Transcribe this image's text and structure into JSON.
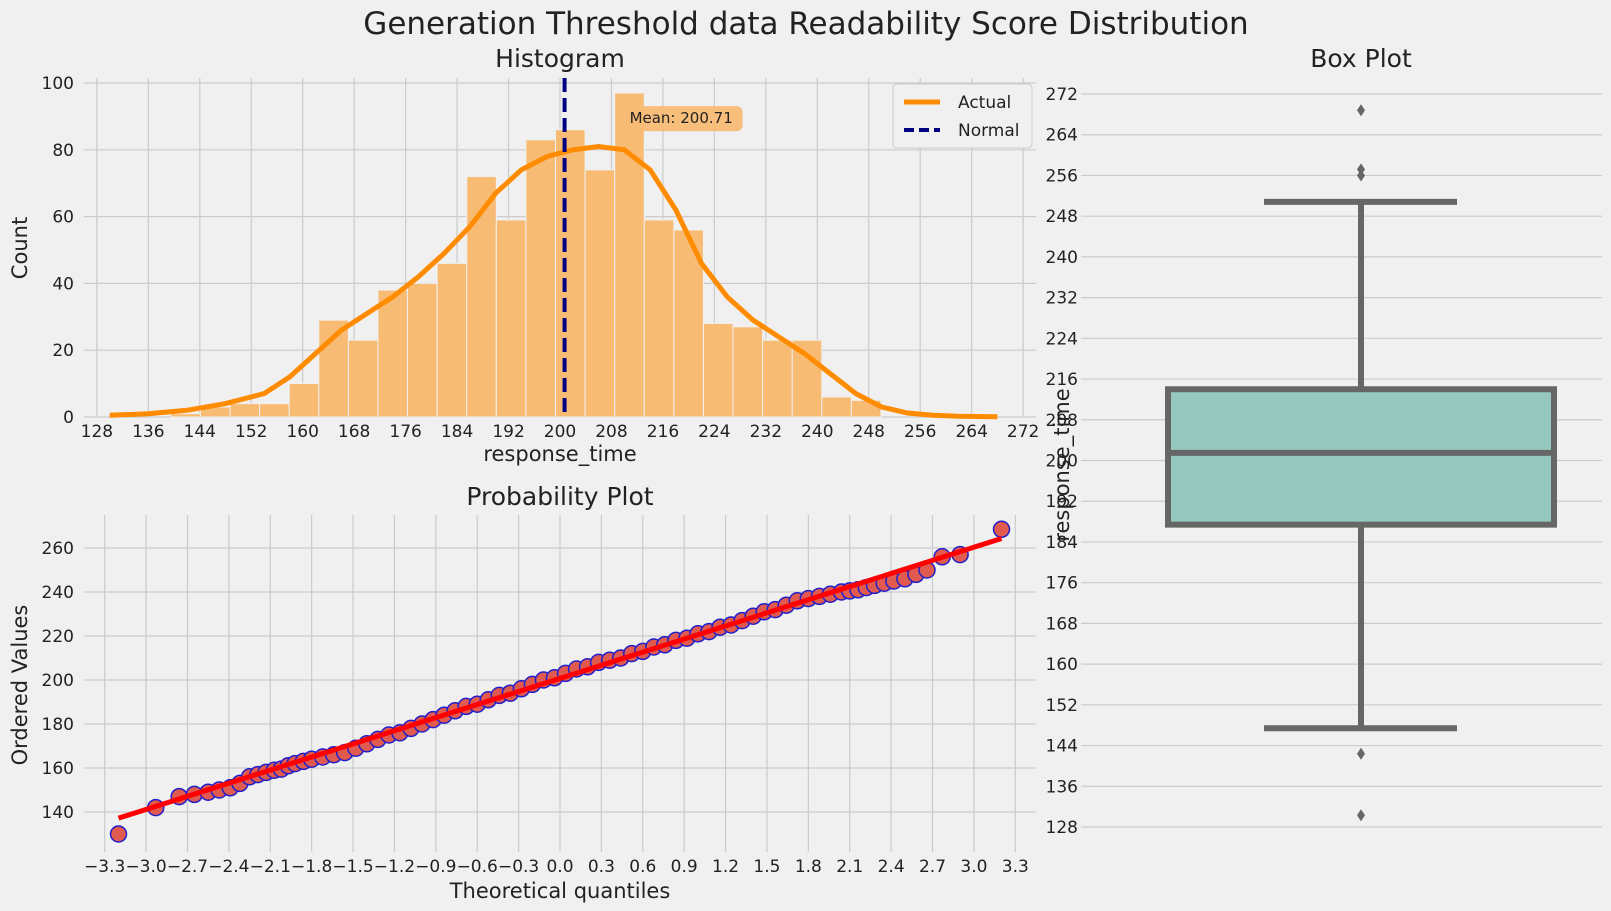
{
  "figure_title": "Generation Threshold data Readability Score Distribution",
  "colors": {
    "background": "#f0f0f0",
    "grid": "#cbcbcb",
    "hist_bar": "#f8bb74",
    "kde": "#ff8c00",
    "mean_line": "#000080",
    "qq_point_fill": "#e05a4f",
    "qq_point_edge": "#1f1fcc",
    "qq_line": "#ff0000",
    "box_fill": "#96c8c0",
    "box_edge": "#666666"
  },
  "chart_data": [
    {
      "type": "bar",
      "id": "histogram",
      "title": "Histogram",
      "xlabel": "response_time",
      "ylabel": "Count",
      "xlim": [
        126,
        274
      ],
      "ylim": [
        0,
        100
      ],
      "xticks": [
        128,
        136,
        144,
        152,
        160,
        168,
        176,
        184,
        192,
        200,
        208,
        216,
        224,
        232,
        240,
        248,
        256,
        264,
        272
      ],
      "yticks": [
        0,
        20,
        40,
        60,
        80,
        100
      ],
      "bin_width": 4.6,
      "bins": [
        {
          "x0": 139.5,
          "count": 1
        },
        {
          "x0": 144.1,
          "count": 3
        },
        {
          "x0": 148.7,
          "count": 4
        },
        {
          "x0": 153.3,
          "count": 4
        },
        {
          "x0": 157.9,
          "count": 10
        },
        {
          "x0": 162.5,
          "count": 29
        },
        {
          "x0": 167.1,
          "count": 23
        },
        {
          "x0": 171.7,
          "count": 38
        },
        {
          "x0": 176.3,
          "count": 40
        },
        {
          "x0": 180.9,
          "count": 46
        },
        {
          "x0": 185.5,
          "count": 72
        },
        {
          "x0": 190.1,
          "count": 59
        },
        {
          "x0": 194.7,
          "count": 83
        },
        {
          "x0": 199.3,
          "count": 86
        },
        {
          "x0": 203.9,
          "count": 74
        },
        {
          "x0": 208.5,
          "count": 97
        },
        {
          "x0": 213.1,
          "count": 59
        },
        {
          "x0": 217.7,
          "count": 56
        },
        {
          "x0": 222.3,
          "count": 28
        },
        {
          "x0": 226.9,
          "count": 27
        },
        {
          "x0": 231.5,
          "count": 23
        },
        {
          "x0": 236.1,
          "count": 23
        },
        {
          "x0": 240.7,
          "count": 6
        },
        {
          "x0": 245.3,
          "count": 5
        }
      ],
      "kde_curve": {
        "x": [
          130,
          136,
          142,
          148,
          154,
          158,
          162,
          166,
          170,
          174,
          178,
          182,
          186,
          190,
          194,
          198,
          202,
          206,
          210,
          214,
          218,
          222,
          226,
          230,
          234,
          238,
          242,
          246,
          250,
          254,
          258,
          262,
          268
        ],
        "y": [
          0.5,
          1,
          2,
          4,
          7,
          12,
          19,
          26,
          31,
          36,
          42,
          49,
          57,
          67,
          74,
          78,
          80,
          81,
          80,
          74,
          62,
          46,
          36,
          29,
          24,
          19,
          13,
          7,
          3,
          1.2,
          0.5,
          0.2,
          0.1
        ]
      },
      "mean": 200.71,
      "annotation": "Mean: 200.71",
      "legend": {
        "position": "top-right",
        "entries": [
          "Actual",
          "Normal"
        ]
      }
    },
    {
      "type": "scatter",
      "id": "probability-plot",
      "title": "Probability Plot",
      "xlabel": "Theoretical quantiles",
      "ylabel": "Ordered Values",
      "xlim": [
        -3.45,
        3.45
      ],
      "ylim": [
        127,
        276
      ],
      "xticks": [
        -3.3,
        -3.0,
        -2.7,
        -2.4,
        -2.1,
        -1.8,
        -1.5,
        -1.2,
        -0.9,
        -0.6,
        -0.3,
        0.0,
        0.3,
        0.6,
        0.9,
        1.2,
        1.5,
        1.8,
        2.1,
        2.4,
        2.7,
        3.0,
        3.3
      ],
      "xtick_labels": [
        "−3.3",
        "−3.0",
        "−2.7",
        "−2.4",
        "−2.1",
        "−1.8",
        "−1.5",
        "−1.2",
        "−0.9",
        "−0.6",
        "−0.3",
        "0.0",
        "0.3",
        "0.6",
        "0.9",
        "1.2",
        "1.5",
        "1.8",
        "2.1",
        "2.4",
        "2.7",
        "3.0",
        "3.3"
      ],
      "yticks": [
        140,
        160,
        180,
        200,
        220,
        240,
        260
      ],
      "fit_line": {
        "x": [
          -3.2,
          3.2
        ],
        "y": [
          137.2,
          264.3
        ]
      },
      "points": [
        [
          -3.2,
          130
        ],
        [
          -2.93,
          142
        ],
        [
          -2.76,
          147
        ],
        [
          -2.65,
          148
        ],
        [
          -2.55,
          149
        ],
        [
          -2.47,
          150
        ],
        [
          -2.39,
          151
        ],
        [
          -2.32,
          153
        ],
        [
          -2.25,
          156
        ],
        [
          -2.19,
          157
        ],
        [
          -2.13,
          158
        ],
        [
          -2.07,
          159
        ],
        [
          -2.02,
          159.5
        ],
        [
          -1.97,
          161
        ],
        [
          -1.92,
          162
        ],
        [
          -1.86,
          163
        ],
        [
          -1.8,
          164
        ],
        [
          -1.72,
          165
        ],
        [
          -1.64,
          166
        ],
        [
          -1.56,
          167
        ],
        [
          -1.48,
          169
        ],
        [
          -1.4,
          171
        ],
        [
          -1.32,
          173
        ],
        [
          -1.24,
          175
        ],
        [
          -1.16,
          176
        ],
        [
          -1.08,
          178
        ],
        [
          -1.0,
          180
        ],
        [
          -0.92,
          182
        ],
        [
          -0.84,
          184
        ],
        [
          -0.76,
          186
        ],
        [
          -0.68,
          188
        ],
        [
          -0.6,
          189
        ],
        [
          -0.52,
          191
        ],
        [
          -0.44,
          193
        ],
        [
          -0.36,
          194
        ],
        [
          -0.28,
          196
        ],
        [
          -0.2,
          198
        ],
        [
          -0.12,
          200
        ],
        [
          -0.04,
          201
        ],
        [
          0.04,
          203
        ],
        [
          0.12,
          205
        ],
        [
          0.2,
          206
        ],
        [
          0.28,
          208
        ],
        [
          0.36,
          209
        ],
        [
          0.44,
          210
        ],
        [
          0.52,
          212
        ],
        [
          0.6,
          213
        ],
        [
          0.68,
          215
        ],
        [
          0.76,
          216
        ],
        [
          0.84,
          218
        ],
        [
          0.92,
          219
        ],
        [
          1.0,
          221
        ],
        [
          1.08,
          222
        ],
        [
          1.16,
          224
        ],
        [
          1.24,
          225
        ],
        [
          1.32,
          227
        ],
        [
          1.4,
          229
        ],
        [
          1.48,
          231
        ],
        [
          1.56,
          232
        ],
        [
          1.64,
          234
        ],
        [
          1.72,
          236
        ],
        [
          1.8,
          237
        ],
        [
          1.88,
          238
        ],
        [
          1.96,
          239
        ],
        [
          2.04,
          240
        ],
        [
          2.1,
          240.5
        ],
        [
          2.16,
          241
        ],
        [
          2.22,
          242
        ],
        [
          2.28,
          243
        ],
        [
          2.35,
          244
        ],
        [
          2.42,
          245
        ],
        [
          2.5,
          246
        ],
        [
          2.58,
          248
        ],
        [
          2.66,
          250
        ],
        [
          2.77,
          256
        ],
        [
          2.9,
          257
        ],
        [
          3.2,
          268.5
        ]
      ]
    },
    {
      "type": "box",
      "id": "box-plot",
      "title": "Box Plot",
      "ylabel": "response_time",
      "ylim": [
        123,
        276
      ],
      "yticks": [
        128,
        136,
        144,
        152,
        160,
        168,
        176,
        184,
        192,
        200,
        208,
        216,
        224,
        232,
        240,
        248,
        256,
        264,
        272
      ],
      "box": {
        "q1": 187.4,
        "median": 201.5,
        "q3": 214,
        "whisker_low": 147.4,
        "whisker_high": 250.8
      },
      "outliers": [
        268.8,
        257.2,
        256.0,
        142.4,
        130.3
      ]
    }
  ]
}
